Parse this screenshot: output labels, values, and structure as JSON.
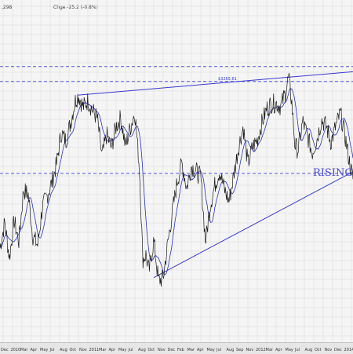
{
  "header": {
    "last_value": ",298",
    "change": "Chge -25.2 (-0.8%)"
  },
  "colors": {
    "background": "#f5f5f5",
    "grid": "#d9d9d9",
    "price": "#1a1a1a",
    "moving_average": "#2b33b8",
    "trendline": "#3a3ad0",
    "annotation": "#4a4ad6"
  },
  "chart_data": {
    "type": "line",
    "series": [
      {
        "name": "",
        "x": [
          0,
          6,
          12,
          18,
          24,
          30,
          36,
          42,
          48,
          54,
          60,
          66,
          72,
          78,
          84,
          90,
          96,
          100,
          106,
          112,
          118,
          124,
          130,
          136,
          142,
          148,
          154,
          160,
          166,
          172,
          178,
          182,
          186,
          190,
          196,
          202,
          208,
          214,
          220,
          226,
          232,
          238,
          244,
          250,
          256,
          262,
          268,
          274,
          280,
          286,
          292,
          298,
          304,
          310,
          316,
          322,
          328,
          334,
          340,
          346,
          352,
          358,
          364,
          368,
          372,
          376,
          380,
          386,
          392,
          398,
          404,
          410,
          416,
          422,
          428,
          434,
          440,
          446,
          450
        ],
        "values": [
          2828,
          2895,
          2802,
          2900,
          2845,
          2980,
          2968,
          2858,
          2835,
          2935,
          2965,
          3000,
          3048,
          3130,
          3110,
          3158,
          3215,
          3230,
          3198,
          3215,
          3190,
          3168,
          3068,
          3125,
          3092,
          3148,
          3170,
          3094,
          3143,
          3186,
          3030,
          2798,
          2810,
          2765,
          2848,
          2742,
          2748,
          2842,
          2925,
          3004,
          3051,
          2985,
          3044,
          3030,
          3014,
          2843,
          2940,
          2994,
          3031,
          2982,
          2950,
          3020,
          3092,
          3147,
          3048,
          3094,
          3112,
          3158,
          3194,
          3208,
          3208,
          3200,
          3238,
          3277,
          3210,
          3098,
          3085,
          3160,
          3122,
          3078,
          3114,
          3165,
          3147,
          3106,
          3148,
          3182,
          3120,
          3048,
          3010
        ]
      }
    ],
    "ylim": [
      2580,
      3480
    ],
    "reference_levels": [
      {
        "value": 3265.61,
        "label": "$3265.61"
      },
      {
        "value": 3305,
        "label": ""
      },
      {
        "value": 3024,
        "label": ""
      }
    ],
    "x_tick_labels": [
      "Dec",
      "2010",
      "Mar",
      "Apr",
      "May",
      "Jul",
      "Aug",
      "Oct",
      "Nov",
      "2011",
      "Mar",
      "Apr",
      "May",
      "Jul",
      "Aug",
      "Oct",
      "Nov",
      "Dec",
      "Feb",
      "Mar",
      "Apr",
      "May",
      "Jul",
      "Aug",
      "Sep",
      "Nov",
      "2012",
      "Mar",
      "Apr",
      "May",
      "Jul",
      "Aug",
      "Oct",
      "Nov",
      "Dec",
      "2014"
    ],
    "annotations": [
      "RISING W"
    ],
    "grid": true
  }
}
